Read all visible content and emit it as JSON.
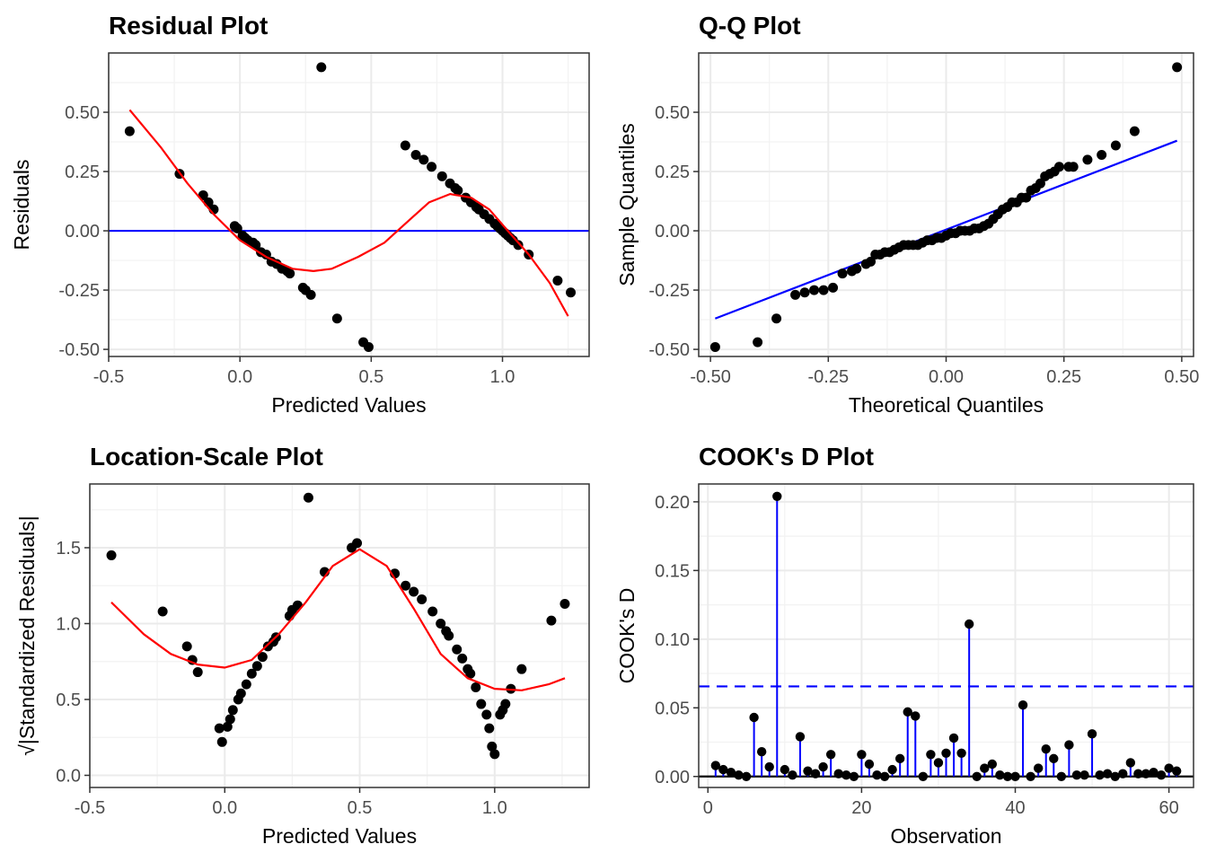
{
  "chart_data": [
    {
      "id": "residual",
      "type": "scatter",
      "title": "Residual Plot",
      "xlabel": "Predicted Values",
      "ylabel": "Residuals",
      "xlim": [
        -0.5,
        1.33
      ],
      "ylim": [
        -0.53,
        0.75
      ],
      "xticks": [
        -0.5,
        0.0,
        0.5,
        1.0
      ],
      "xtick_labels": [
        "-0.5",
        "0.0",
        "0.5",
        "1.0"
      ],
      "yticks": [
        -0.5,
        -0.25,
        0.0,
        0.25,
        0.5
      ],
      "ytick_labels": [
        "-0.50",
        "-0.25",
        "0.00",
        "0.25",
        "0.50"
      ],
      "grid": true,
      "colors": {
        "points": "#000000",
        "reference": "#0000ff",
        "smooth": "#ff0000"
      },
      "reference_line": {
        "y": 0
      },
      "points": [
        [
          -0.42,
          0.42
        ],
        [
          -0.23,
          0.24
        ],
        [
          -0.14,
          0.15
        ],
        [
          -0.12,
          0.12
        ],
        [
          -0.1,
          0.09
        ],
        [
          -0.02,
          0.02
        ],
        [
          -0.01,
          0.01
        ],
        [
          0.01,
          -0.02
        ],
        [
          0.02,
          -0.03
        ],
        [
          0.03,
          -0.04
        ],
        [
          0.05,
          -0.05
        ],
        [
          0.06,
          -0.06
        ],
        [
          0.08,
          -0.09
        ],
        [
          0.1,
          -0.1
        ],
        [
          0.12,
          -0.13
        ],
        [
          0.14,
          -0.14
        ],
        [
          0.16,
          -0.16
        ],
        [
          0.18,
          -0.17
        ],
        [
          0.19,
          -0.18
        ],
        [
          0.24,
          -0.24
        ],
        [
          0.25,
          -0.25
        ],
        [
          0.27,
          -0.27
        ],
        [
          0.31,
          0.69
        ],
        [
          0.37,
          -0.37
        ],
        [
          0.47,
          -0.47
        ],
        [
          0.49,
          -0.49
        ],
        [
          0.63,
          0.36
        ],
        [
          0.67,
          0.32
        ],
        [
          0.7,
          0.3
        ],
        [
          0.73,
          0.27
        ],
        [
          0.77,
          0.23
        ],
        [
          0.8,
          0.2
        ],
        [
          0.82,
          0.18
        ],
        [
          0.83,
          0.17
        ],
        [
          0.86,
          0.14
        ],
        [
          0.88,
          0.12
        ],
        [
          0.9,
          0.1
        ],
        [
          0.91,
          0.09
        ],
        [
          0.93,
          0.07
        ],
        [
          0.95,
          0.05
        ],
        [
          0.97,
          0.03
        ],
        [
          0.98,
          0.02
        ],
        [
          0.99,
          0.01
        ],
        [
          1.0,
          0.0
        ],
        [
          1.01,
          -0.01
        ],
        [
          1.02,
          -0.02
        ],
        [
          1.03,
          -0.03
        ],
        [
          1.04,
          -0.04
        ],
        [
          1.06,
          -0.06
        ],
        [
          1.1,
          -0.1
        ],
        [
          1.21,
          -0.21
        ],
        [
          1.26,
          -0.26
        ]
      ],
      "smooth": [
        [
          -0.42,
          0.51
        ],
        [
          -0.3,
          0.35
        ],
        [
          -0.2,
          0.2
        ],
        [
          -0.1,
          0.07
        ],
        [
          0.0,
          -0.04
        ],
        [
          0.1,
          -0.11
        ],
        [
          0.2,
          -0.16
        ],
        [
          0.28,
          -0.17
        ],
        [
          0.35,
          -0.16
        ],
        [
          0.45,
          -0.11
        ],
        [
          0.55,
          -0.05
        ],
        [
          0.65,
          0.05
        ],
        [
          0.72,
          0.12
        ],
        [
          0.8,
          0.155
        ],
        [
          0.88,
          0.14
        ],
        [
          0.95,
          0.09
        ],
        [
          1.02,
          0.0
        ],
        [
          1.1,
          -0.1
        ],
        [
          1.18,
          -0.22
        ],
        [
          1.25,
          -0.36
        ]
      ]
    },
    {
      "id": "qq",
      "type": "scatter",
      "title": "Q-Q Plot",
      "xlabel": "Theoretical Quantiles",
      "ylabel": "Sample Quantiles",
      "xlim": [
        -0.525,
        0.525
      ],
      "ylim": [
        -0.53,
        0.75
      ],
      "xticks": [
        -0.5,
        -0.25,
        0.0,
        0.25,
        0.5
      ],
      "xtick_labels": [
        "-0.50",
        "-0.25",
        "0.00",
        "0.25",
        "0.50"
      ],
      "yticks": [
        -0.5,
        -0.25,
        0.0,
        0.25,
        0.5
      ],
      "ytick_labels": [
        "-0.50",
        "-0.25",
        "0.00",
        "0.25",
        "0.50"
      ],
      "grid": true,
      "colors": {
        "points": "#000000",
        "reference": "#0000ff"
      },
      "reference_line": {
        "from": [
          -0.49,
          -0.37
        ],
        "to": [
          0.49,
          0.38
        ]
      },
      "points": [
        [
          -0.49,
          -0.49
        ],
        [
          -0.4,
          -0.47
        ],
        [
          -0.36,
          -0.37
        ],
        [
          -0.32,
          -0.27
        ],
        [
          -0.3,
          -0.26
        ],
        [
          -0.28,
          -0.25
        ],
        [
          -0.26,
          -0.25
        ],
        [
          -0.24,
          -0.24
        ],
        [
          -0.22,
          -0.18
        ],
        [
          -0.2,
          -0.17
        ],
        [
          -0.19,
          -0.16
        ],
        [
          -0.17,
          -0.14
        ],
        [
          -0.16,
          -0.13
        ],
        [
          -0.15,
          -0.1
        ],
        [
          -0.14,
          -0.1
        ],
        [
          -0.13,
          -0.09
        ],
        [
          -0.12,
          -0.09
        ],
        [
          -0.11,
          -0.08
        ],
        [
          -0.1,
          -0.07
        ],
        [
          -0.09,
          -0.06
        ],
        [
          -0.08,
          -0.06
        ],
        [
          -0.07,
          -0.06
        ],
        [
          -0.06,
          -0.06
        ],
        [
          -0.05,
          -0.05
        ],
        [
          -0.04,
          -0.04
        ],
        [
          -0.03,
          -0.04
        ],
        [
          -0.02,
          -0.03
        ],
        [
          -0.01,
          -0.03
        ],
        [
          0.0,
          -0.02
        ],
        [
          0.01,
          -0.01
        ],
        [
          0.02,
          -0.01
        ],
        [
          0.03,
          0.0
        ],
        [
          0.04,
          0.0
        ],
        [
          0.05,
          0.0
        ],
        [
          0.06,
          0.01
        ],
        [
          0.07,
          0.01
        ],
        [
          0.08,
          0.02
        ],
        [
          0.09,
          0.03
        ],
        [
          0.1,
          0.05
        ],
        [
          0.11,
          0.07
        ],
        [
          0.12,
          0.09
        ],
        [
          0.13,
          0.1
        ],
        [
          0.14,
          0.12
        ],
        [
          0.15,
          0.12
        ],
        [
          0.16,
          0.14
        ],
        [
          0.17,
          0.14
        ],
        [
          0.18,
          0.17
        ],
        [
          0.19,
          0.18
        ],
        [
          0.2,
          0.2
        ],
        [
          0.21,
          0.23
        ],
        [
          0.22,
          0.24
        ],
        [
          0.23,
          0.25
        ],
        [
          0.24,
          0.27
        ],
        [
          0.26,
          0.27
        ],
        [
          0.27,
          0.27
        ],
        [
          0.3,
          0.3
        ],
        [
          0.33,
          0.32
        ],
        [
          0.36,
          0.36
        ],
        [
          0.4,
          0.42
        ],
        [
          0.49,
          0.69
        ]
      ]
    },
    {
      "id": "location_scale",
      "type": "scatter",
      "title": "Location-Scale Plot",
      "xlabel": "Predicted Values",
      "ylabel_radical": "√",
      "ylabel": "|Standardized Residuals|",
      "xlim": [
        -0.5,
        1.35
      ],
      "ylim": [
        -0.08,
        1.92
      ],
      "xticks": [
        -0.5,
        0.0,
        0.5,
        1.0
      ],
      "xtick_labels": [
        "-0.5",
        "0.0",
        "0.5",
        "1.0"
      ],
      "yticks": [
        0.0,
        0.5,
        1.0,
        1.5
      ],
      "ytick_labels": [
        "0.0",
        "0.5",
        "1.0",
        "1.5"
      ],
      "grid": true,
      "colors": {
        "points": "#000000",
        "smooth": "#ff0000"
      },
      "points": [
        [
          -0.42,
          1.45
        ],
        [
          -0.23,
          1.08
        ],
        [
          -0.14,
          0.85
        ],
        [
          -0.12,
          0.76
        ],
        [
          -0.1,
          0.68
        ],
        [
          -0.02,
          0.31
        ],
        [
          -0.01,
          0.22
        ],
        [
          0.01,
          0.32
        ],
        [
          0.02,
          0.37
        ],
        [
          0.03,
          0.43
        ],
        [
          0.05,
          0.5
        ],
        [
          0.06,
          0.54
        ],
        [
          0.08,
          0.6
        ],
        [
          0.1,
          0.67
        ],
        [
          0.12,
          0.72
        ],
        [
          0.14,
          0.78
        ],
        [
          0.16,
          0.85
        ],
        [
          0.18,
          0.88
        ],
        [
          0.19,
          0.91
        ],
        [
          0.24,
          1.05
        ],
        [
          0.25,
          1.09
        ],
        [
          0.27,
          1.12
        ],
        [
          0.31,
          1.83
        ],
        [
          0.37,
          1.34
        ],
        [
          0.47,
          1.5
        ],
        [
          0.49,
          1.53
        ],
        [
          0.63,
          1.33
        ],
        [
          0.67,
          1.25
        ],
        [
          0.7,
          1.21
        ],
        [
          0.73,
          1.16
        ],
        [
          0.77,
          1.08
        ],
        [
          0.8,
          1.0
        ],
        [
          0.82,
          0.95
        ],
        [
          0.83,
          0.92
        ],
        [
          0.86,
          0.83
        ],
        [
          0.88,
          0.77
        ],
        [
          0.9,
          0.7
        ],
        [
          0.91,
          0.67
        ],
        [
          0.93,
          0.58
        ],
        [
          0.95,
          0.47
        ],
        [
          0.97,
          0.4
        ],
        [
          0.98,
          0.31
        ],
        [
          0.99,
          0.19
        ],
        [
          1.0,
          0.14
        ],
        [
          1.02,
          0.4
        ],
        [
          1.03,
          0.43
        ],
        [
          1.04,
          0.47
        ],
        [
          1.06,
          0.57
        ],
        [
          1.1,
          0.7
        ],
        [
          1.21,
          1.02
        ],
        [
          1.26,
          1.13
        ]
      ],
      "smooth": [
        [
          -0.42,
          1.14
        ],
        [
          -0.3,
          0.93
        ],
        [
          -0.2,
          0.8
        ],
        [
          -0.1,
          0.73
        ],
        [
          0.0,
          0.71
        ],
        [
          0.1,
          0.76
        ],
        [
          0.2,
          0.93
        ],
        [
          0.3,
          1.14
        ],
        [
          0.4,
          1.38
        ],
        [
          0.5,
          1.49
        ],
        [
          0.6,
          1.38
        ],
        [
          0.7,
          1.1
        ],
        [
          0.8,
          0.8
        ],
        [
          0.9,
          0.64
        ],
        [
          1.0,
          0.57
        ],
        [
          1.1,
          0.56
        ],
        [
          1.2,
          0.6
        ],
        [
          1.26,
          0.64
        ]
      ]
    },
    {
      "id": "cooks",
      "type": "lollipop",
      "title": "COOK's D Plot",
      "xlabel": "Observation",
      "ylabel": "COOK's D",
      "xlim": [
        -1.2,
        63.2
      ],
      "ylim": [
        -0.008,
        0.213
      ],
      "xticks": [
        0,
        20,
        40,
        60
      ],
      "xtick_labels": [
        "0",
        "20",
        "40",
        "60"
      ],
      "yticks": [
        0.0,
        0.05,
        0.1,
        0.15,
        0.2
      ],
      "ytick_labels": [
        "0.00",
        "0.05",
        "0.10",
        "0.15",
        "0.20"
      ],
      "grid": true,
      "colors": {
        "points": "#000000",
        "stems": "#0000ff",
        "threshold": "#0000ff",
        "baseline": "#000000"
      },
      "threshold": 0.0656,
      "observations": [
        1,
        2,
        3,
        4,
        5,
        6,
        7,
        8,
        9,
        10,
        11,
        12,
        13,
        14,
        15,
        16,
        17,
        18,
        19,
        20,
        21,
        22,
        23,
        24,
        25,
        26,
        27,
        28,
        29,
        30,
        31,
        32,
        33,
        34,
        35,
        36,
        37,
        38,
        39,
        40,
        41,
        42,
        43,
        44,
        45,
        46,
        47,
        48,
        49,
        50,
        51,
        52,
        53,
        54,
        55,
        56,
        57,
        58,
        59,
        60,
        61
      ],
      "values": [
        0.008,
        0.005,
        0.003,
        0.001,
        0.0,
        0.043,
        0.018,
        0.007,
        0.204,
        0.005,
        0.001,
        0.029,
        0.004,
        0.002,
        0.007,
        0.016,
        0.002,
        0.001,
        0.0,
        0.016,
        0.009,
        0.001,
        0.0,
        0.005,
        0.013,
        0.047,
        0.044,
        0.0,
        0.016,
        0.01,
        0.017,
        0.028,
        0.017,
        0.111,
        0.0,
        0.006,
        0.009,
        0.001,
        0.0,
        0.0,
        0.052,
        0.0,
        0.006,
        0.02,
        0.013,
        0.0,
        0.023,
        0.001,
        0.001,
        0.031,
        0.001,
        0.002,
        0.0,
        0.002,
        0.01,
        0.002,
        0.002,
        0.003,
        0.001,
        0.006,
        0.004
      ]
    }
  ]
}
